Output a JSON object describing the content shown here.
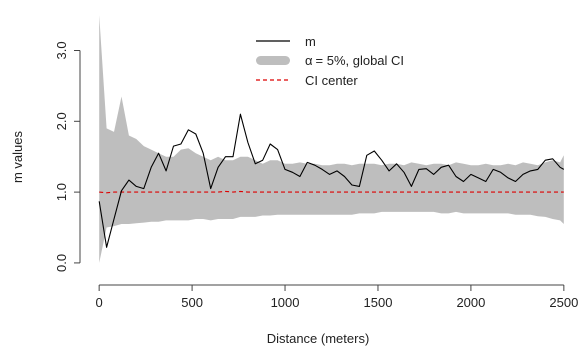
{
  "chart_data": {
    "type": "line",
    "xlabel": "Distance (meters)",
    "ylabel": "m values",
    "xlim": [
      -60,
      2560
    ],
    "ylim": [
      -0.1,
      3.6
    ],
    "xticks": [
      0,
      500,
      1000,
      1500,
      2000,
      2500
    ],
    "xtick_labels": [
      "0",
      "500",
      "1000",
      "1500",
      "2000",
      "2500"
    ],
    "yticks": [
      0.0,
      1.0,
      2.0,
      3.0
    ],
    "ytick_labels": [
      "0.0",
      "1.0",
      "2.0",
      "3.0"
    ],
    "grid": false,
    "legend_position": "top-center",
    "legend": [
      {
        "key": "m",
        "alpha_symbol": "",
        "label": "m",
        "style": "line",
        "color": "#000000"
      },
      {
        "key": "ci",
        "alpha_symbol": "α",
        "label": "= 5%, global CI",
        "style": "band",
        "color": "#bebebe"
      },
      {
        "key": "center",
        "alpha_symbol": "",
        "label": "CI center",
        "style": "dashed",
        "color": "#dd0000"
      }
    ],
    "x": [
      0,
      40,
      80,
      120,
      160,
      200,
      240,
      280,
      320,
      360,
      400,
      440,
      480,
      520,
      560,
      600,
      640,
      680,
      720,
      760,
      800,
      840,
      880,
      920,
      960,
      1000,
      1040,
      1080,
      1120,
      1160,
      1200,
      1240,
      1280,
      1320,
      1360,
      1400,
      1440,
      1480,
      1520,
      1560,
      1600,
      1640,
      1680,
      1720,
      1760,
      1800,
      1840,
      1880,
      1920,
      1960,
      2000,
      2040,
      2080,
      2120,
      2160,
      2200,
      2240,
      2280,
      2320,
      2360,
      2400,
      2440,
      2480,
      2500
    ],
    "series": [
      {
        "name": "m",
        "color": "#000000",
        "values": [
          0.87,
          0.22,
          0.62,
          1.02,
          1.17,
          1.08,
          1.05,
          1.35,
          1.55,
          1.3,
          1.65,
          1.68,
          1.88,
          1.82,
          1.55,
          1.05,
          1.35,
          1.5,
          1.5,
          2.1,
          1.7,
          1.4,
          1.45,
          1.68,
          1.6,
          1.32,
          1.28,
          1.22,
          1.42,
          1.38,
          1.32,
          1.25,
          1.3,
          1.22,
          1.1,
          1.08,
          1.52,
          1.58,
          1.45,
          1.3,
          1.4,
          1.28,
          1.08,
          1.32,
          1.33,
          1.25,
          1.35,
          1.38,
          1.22,
          1.15,
          1.25,
          1.2,
          1.15,
          1.32,
          1.28,
          1.2,
          1.15,
          1.25,
          1.3,
          1.32,
          1.45,
          1.47,
          1.35,
          1.32
        ]
      },
      {
        "name": "CI center",
        "color": "#dd0000",
        "values": [
          1.0,
          0.99,
          1.0,
          1.0,
          1.0,
          1.0,
          1.0,
          1.0,
          1.0,
          1.0,
          1.0,
          1.0,
          1.0,
          1.0,
          1.0,
          1.0,
          1.0,
          1.01,
          1.0,
          1.01,
          1.0,
          1.0,
          1.0,
          1.0,
          1.0,
          1.0,
          1.0,
          1.0,
          1.0,
          1.0,
          1.0,
          1.0,
          1.0,
          1.0,
          1.0,
          1.0,
          1.0,
          1.0,
          1.0,
          1.0,
          1.0,
          1.0,
          1.0,
          1.0,
          1.0,
          1.0,
          1.0,
          1.0,
          1.0,
          1.0,
          1.0,
          1.0,
          1.0,
          1.0,
          1.0,
          1.0,
          1.0,
          1.0,
          1.0,
          1.0,
          1.0,
          1.0,
          1.0,
          1.0
        ]
      }
    ],
    "ci_band": {
      "name": "α = 5%, global CI",
      "color": "#bebebe",
      "upper": [
        3.5,
        1.9,
        1.85,
        2.35,
        1.8,
        1.75,
        1.65,
        1.6,
        1.55,
        1.5,
        1.5,
        1.6,
        1.62,
        1.55,
        1.5,
        1.45,
        1.5,
        1.45,
        1.45,
        1.5,
        1.5,
        1.45,
        1.4,
        1.45,
        1.45,
        1.4,
        1.4,
        1.42,
        1.4,
        1.4,
        1.38,
        1.38,
        1.4,
        1.4,
        1.38,
        1.4,
        1.4,
        1.4,
        1.38,
        1.4,
        1.4,
        1.38,
        1.42,
        1.4,
        1.38,
        1.4,
        1.4,
        1.38,
        1.42,
        1.4,
        1.38,
        1.38,
        1.4,
        1.38,
        1.38,
        1.4,
        1.38,
        1.42,
        1.4,
        1.38,
        1.42,
        1.45,
        1.42,
        1.52
      ],
      "lower": [
        0.0,
        0.5,
        0.52,
        0.55,
        0.55,
        0.56,
        0.57,
        0.58,
        0.58,
        0.6,
        0.6,
        0.6,
        0.6,
        0.62,
        0.62,
        0.6,
        0.62,
        0.62,
        0.62,
        0.65,
        0.65,
        0.65,
        0.67,
        0.67,
        0.68,
        0.68,
        0.68,
        0.68,
        0.68,
        0.68,
        0.68,
        0.68,
        0.68,
        0.68,
        0.68,
        0.7,
        0.7,
        0.7,
        0.72,
        0.72,
        0.72,
        0.72,
        0.72,
        0.72,
        0.72,
        0.72,
        0.7,
        0.7,
        0.72,
        0.7,
        0.7,
        0.7,
        0.7,
        0.7,
        0.7,
        0.7,
        0.68,
        0.68,
        0.68,
        0.66,
        0.65,
        0.62,
        0.6,
        0.55
      ]
    }
  }
}
